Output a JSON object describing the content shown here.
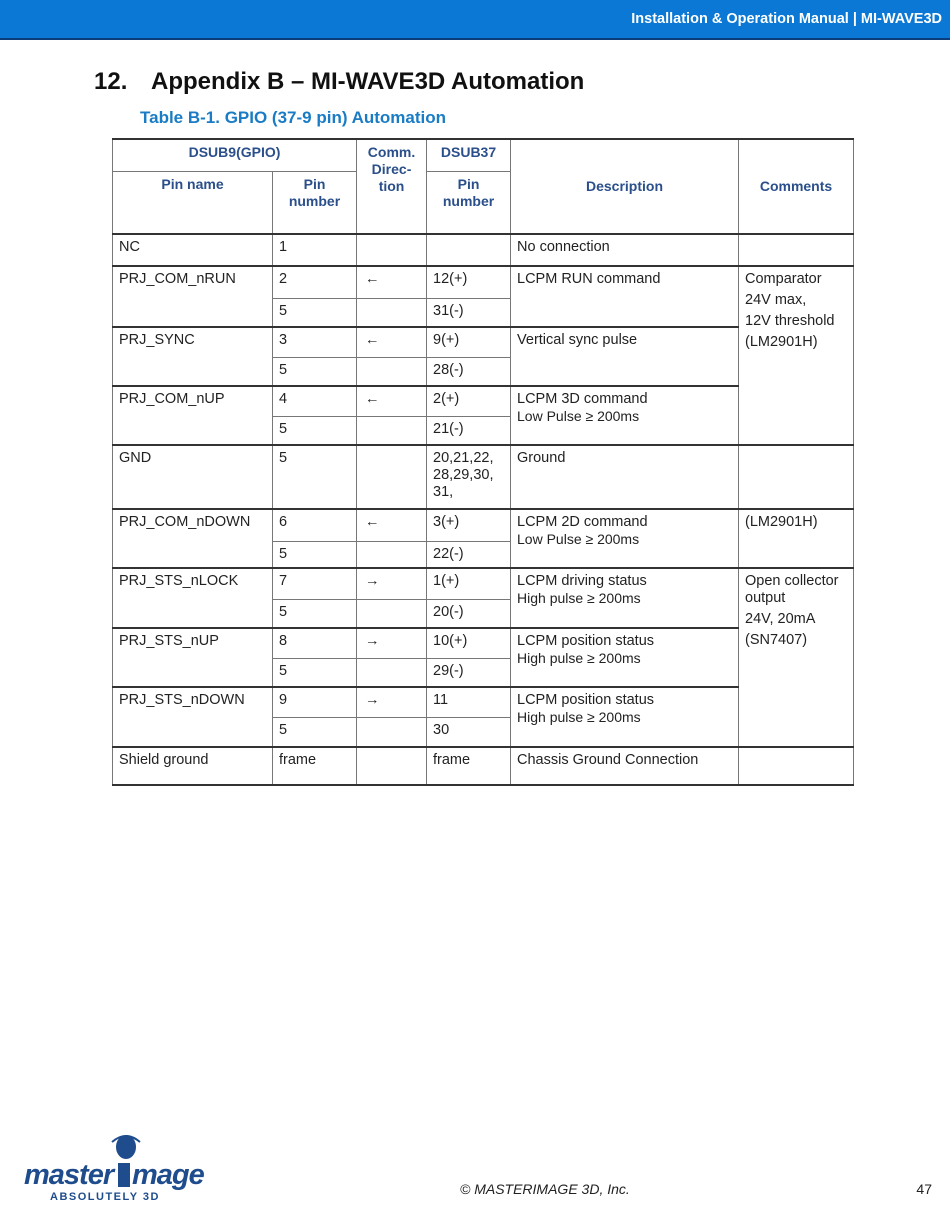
{
  "header": {
    "title": "Installation & Operation Manual | MI-WAVE3D"
  },
  "section": {
    "number": "12.",
    "title": "Appendix B – MI-WAVE3D Automation"
  },
  "table": {
    "caption": "Table B-1. GPIO (37-9 pin) Automation",
    "headers": {
      "dsub9": "DSUB9(GPIO)",
      "direction": "Comm. Direc-tion",
      "dsub37": "DSUB37",
      "pin_name": "Pin name",
      "pin_number": "Pin number",
      "pin_number37": "Pin number",
      "description": "Description",
      "comments": "Comments"
    },
    "rows": [
      {
        "name": "NC",
        "pin": "1",
        "dir": "",
        "d37": "",
        "desc": "No connection",
        "comment": ""
      },
      {
        "name": "PRJ_COM_nRUN",
        "pin": "2",
        "pin2": "5",
        "dir": "←",
        "d37": "12(+)",
        "d37b": "31(-)",
        "desc": "LCPM RUN command"
      },
      {
        "name": "PRJ_SYNC",
        "pin": "3",
        "pin2": "5",
        "dir": "←",
        "d37": "9(+)",
        "d37b": "28(-)",
        "desc": "Vertical sync pulse"
      },
      {
        "name": "PRJ_COM_nUP",
        "pin": "4",
        "pin2": "5",
        "dir": "←",
        "d37": "2(+)",
        "d37b": "21(-)",
        "desc": "LCPM 3D command",
        "note": "Low Pulse ≥ 200ms"
      },
      {
        "name": "GND",
        "pin": "5",
        "dir": "",
        "d37": "20,21,22, 28,29,30, 31,",
        "desc": "Ground",
        "comment": ""
      },
      {
        "name": "PRJ_COM_nDOWN",
        "pin": "6",
        "pin2": "5",
        "dir": "←",
        "d37": "3(+)",
        "d37b": "22(-)",
        "desc": "LCPM 2D command",
        "note": "Low Pulse ≥ 200ms",
        "comment": "(LM2901H)"
      },
      {
        "name": "PRJ_STS_nLOCK",
        "pin": "7",
        "pin2": "5",
        "dir": "→",
        "d37": "1(+)",
        "d37b": "20(-)",
        "desc": "LCPM driving status",
        "note": "High pulse ≥ 200ms"
      },
      {
        "name": "PRJ_STS_nUP",
        "pin": "8",
        "pin2": "5",
        "dir": "→",
        "d37": "10(+)",
        "d37b": "29(-)",
        "desc": "LCPM position status",
        "note": "High pulse ≥ 200ms"
      },
      {
        "name": "PRJ_STS_nDOWN",
        "pin": "9",
        "pin2": "5",
        "dir": "→",
        "d37": "11",
        "d37b": "30",
        "desc": "LCPM position status",
        "note": "High pulse ≥ 200ms"
      },
      {
        "name": "Shield ground",
        "pin": "frame",
        "dir": "",
        "d37": "frame",
        "desc": "Chassis Ground Connection",
        "comment": ""
      }
    ],
    "comment_comparator": [
      "Comparator",
      "24V max,",
      "12V threshold",
      "(LM2901H)"
    ],
    "comment_open_collector": [
      "Open collector output",
      "24V, 20mA",
      "(SN7407)"
    ]
  },
  "footer": {
    "copyright": "© MASTERIMAGE 3D, Inc.",
    "page": "47",
    "logo_text": "masterImage",
    "logo_tagline": "ABSOLUTELY 3D"
  },
  "colors": {
    "header_bar": "#0a78d4",
    "caption": "#1a7cc4",
    "table_header": "#2a4f8a",
    "logo": "#1e4c8c"
  }
}
